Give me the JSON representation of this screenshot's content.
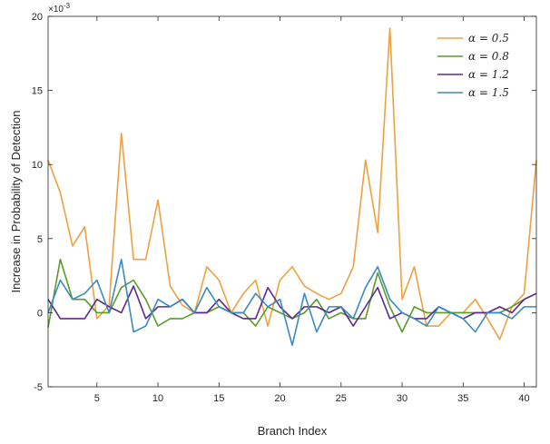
{
  "chart_data": {
    "type": "line",
    "xlabel": "Branch Index",
    "ylabel": "Increase in Probability of Detection",
    "y_exponent_label": "×10",
    "y_exponent_power": "-3",
    "xlim": [
      1,
      41
    ],
    "ylim": [
      -5,
      20
    ],
    "x_ticks": [
      5,
      10,
      15,
      20,
      25,
      30,
      35,
      40
    ],
    "x_tick_labels": [
      "5",
      "10",
      "15",
      "20",
      "25",
      "30",
      "35",
      "40"
    ],
    "y_ticks": [
      -5,
      0,
      5,
      10,
      15,
      20
    ],
    "y_tick_labels": [
      "-5",
      "0",
      "5",
      "10",
      "15",
      "20"
    ],
    "legend_position": "top-right",
    "grid": false,
    "x": [
      1,
      2,
      3,
      4,
      5,
      6,
      7,
      8,
      9,
      10,
      11,
      12,
      13,
      14,
      15,
      16,
      17,
      18,
      19,
      20,
      21,
      22,
      23,
      24,
      25,
      26,
      27,
      28,
      29,
      30,
      31,
      32,
      33,
      34,
      35,
      36,
      37,
      38,
      39,
      40,
      41
    ],
    "series": [
      {
        "name": "α = 0.5",
        "color": "#f0a040",
        "values": [
          10.3,
          8.1,
          4.5,
          5.8,
          -0.4,
          0.5,
          12.1,
          3.6,
          3.6,
          7.6,
          1.8,
          0.5,
          0.0,
          3.1,
          2.2,
          0.0,
          1.3,
          2.2,
          -0.9,
          2.2,
          3.1,
          1.8,
          1.3,
          0.9,
          1.3,
          3.1,
          10.3,
          5.4,
          19.2,
          0.9,
          3.1,
          -0.9,
          -0.9,
          0.0,
          0.0,
          0.9,
          -0.4,
          -1.8,
          0.4,
          1.3,
          10.3
        ]
      },
      {
        "name": "α = 0.8",
        "color": "#5a9a2a",
        "values": [
          -1.0,
          3.6,
          0.9,
          0.9,
          0.0,
          0.0,
          1.7,
          2.2,
          0.9,
          -0.9,
          -0.4,
          -0.4,
          0.0,
          0.0,
          0.4,
          0.0,
          0.0,
          -0.9,
          0.4,
          0.0,
          -0.4,
          0.0,
          0.9,
          -0.4,
          0.0,
          -0.4,
          -0.4,
          2.7,
          0.4,
          -1.3,
          0.4,
          0.0,
          0.0,
          0.0,
          0.0,
          0.0,
          0.0,
          0.0,
          0.4,
          0.9,
          1.3
        ]
      },
      {
        "name": "α = 1.2",
        "color": "#5a2a90",
        "values": [
          0.9,
          -0.4,
          -0.4,
          -0.4,
          0.9,
          0.4,
          0.0,
          1.8,
          -0.4,
          0.4,
          0.4,
          0.9,
          0.0,
          0.0,
          0.9,
          0.0,
          -0.4,
          -0.4,
          1.7,
          0.4,
          -0.4,
          0.4,
          0.4,
          0.0,
          0.4,
          -0.9,
          0.4,
          1.7,
          -0.4,
          0.0,
          -0.4,
          -0.4,
          0.4,
          0.0,
          -0.4,
          0.0,
          0.0,
          0.4,
          0.0,
          0.9,
          1.3
        ]
      },
      {
        "name": "α = 1.5",
        "color": "#3a8ac0",
        "values": [
          0.0,
          2.2,
          0.9,
          1.3,
          2.2,
          0.0,
          3.6,
          -1.3,
          -0.9,
          0.9,
          0.4,
          0.9,
          0.0,
          1.7,
          0.4,
          0.0,
          0.0,
          1.3,
          0.4,
          0.9,
          -2.2,
          1.3,
          -1.3,
          0.4,
          0.4,
          -0.4,
          1.7,
          3.1,
          0.9,
          0.0,
          -0.4,
          -0.9,
          0.4,
          0.0,
          -0.4,
          -1.3,
          0.0,
          0.0,
          -0.4,
          0.4,
          0.4
        ]
      }
    ]
  }
}
